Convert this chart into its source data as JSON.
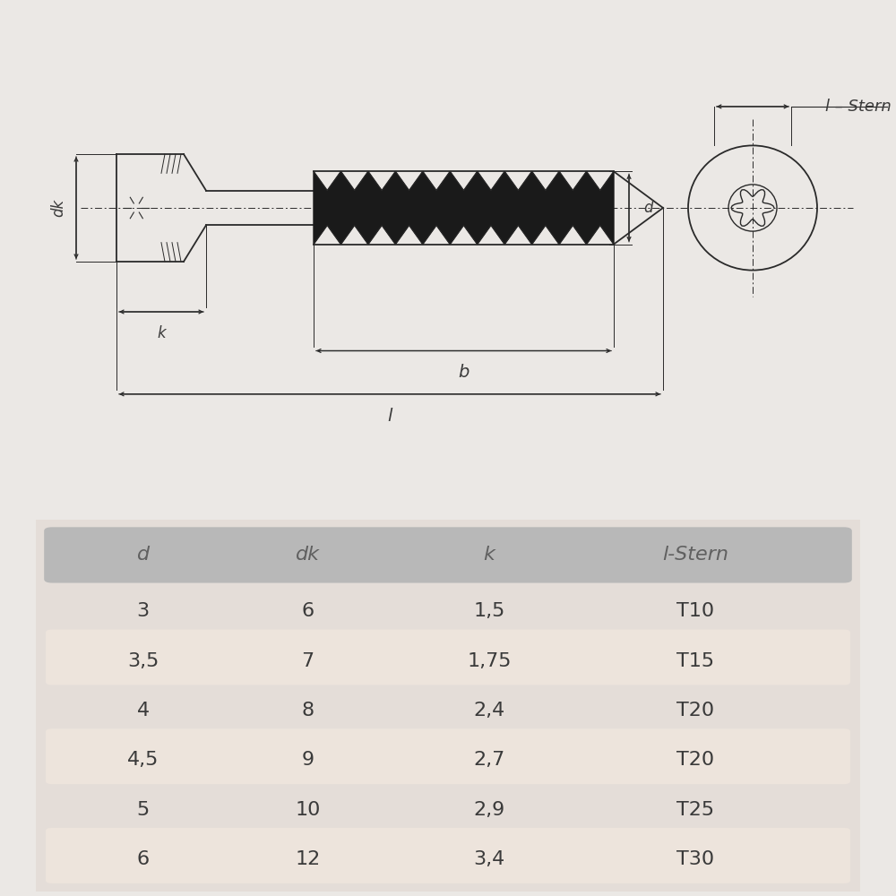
{
  "bg_color": "#ebe8e5",
  "drawing_bg": "#ffffff",
  "table_bg": "#e8e4e0",
  "header_bg": "#b8b8b8",
  "row_highlight": "#ede4dc",
  "line_color": "#2a2a2a",
  "text_color": "#3a3a3a",
  "header_text_color": "#606060",
  "table_data": {
    "headers": [
      "d",
      "dk",
      "k",
      "l-Stern"
    ],
    "rows": [
      [
        "3",
        "6",
        "1,5",
        "T10"
      ],
      [
        "3,5",
        "7",
        "1,75",
        "T15"
      ],
      [
        "4",
        "8",
        "2,4",
        "T20"
      ],
      [
        "4,5",
        "9",
        "2,7",
        "T20"
      ],
      [
        "5",
        "10",
        "2,9",
        "T25"
      ],
      [
        "6",
        "12",
        "3,4",
        "T30"
      ]
    ],
    "highlighted_rows": [
      1,
      3,
      5
    ]
  },
  "labels": {
    "dk": "dk",
    "k": "k",
    "b": "b",
    "l": "l",
    "d": "d",
    "l_stern": "l – Stern"
  }
}
